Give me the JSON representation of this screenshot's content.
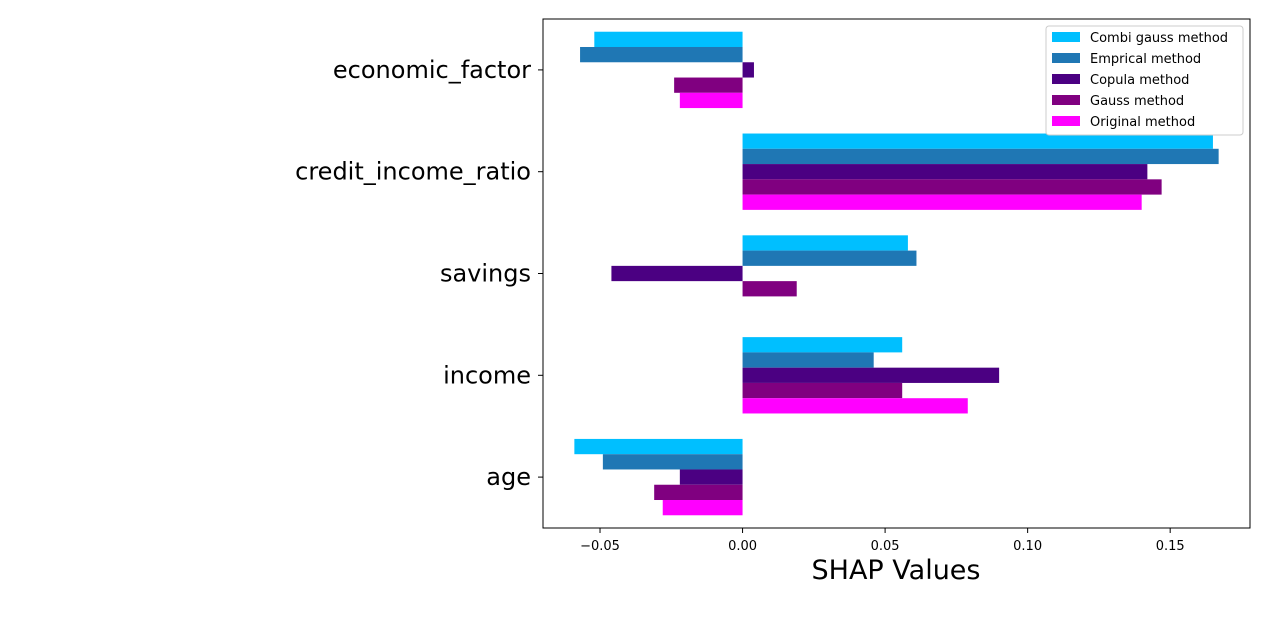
{
  "chart_data": {
    "type": "bar",
    "orientation": "horizontal",
    "xlabel": "SHAP Values",
    "ylabel": "",
    "title": "",
    "categories": [
      "economic_factor",
      "credit_income_ratio",
      "savings",
      "income",
      "age"
    ],
    "xlim": [
      -0.07,
      0.178
    ],
    "xticks": [
      -0.05,
      0.0,
      0.05,
      0.1,
      0.15
    ],
    "xtick_labels": [
      "−0.05",
      "0.00",
      "0.05",
      "0.10",
      "0.15"
    ],
    "grid": false,
    "legend_position": "top-right",
    "series": [
      {
        "name": "Combi gauss method",
        "color": "#00bfff",
        "values": [
          -0.052,
          0.165,
          0.058,
          0.056,
          -0.059
        ]
      },
      {
        "name": "Emprical method",
        "color": "#1f77b4",
        "values": [
          -0.057,
          0.167,
          0.061,
          0.046,
          -0.049
        ]
      },
      {
        "name": "Copula method",
        "color": "#4b0082",
        "values": [
          0.004,
          0.142,
          -0.046,
          0.09,
          -0.022
        ]
      },
      {
        "name": "Gauss method",
        "color": "#800080",
        "values": [
          -0.024,
          0.147,
          0.019,
          0.056,
          -0.031
        ]
      },
      {
        "name": "Original method",
        "color": "#ff00ff",
        "values": [
          -0.022,
          0.14,
          0.0,
          0.079,
          -0.028
        ]
      }
    ]
  }
}
